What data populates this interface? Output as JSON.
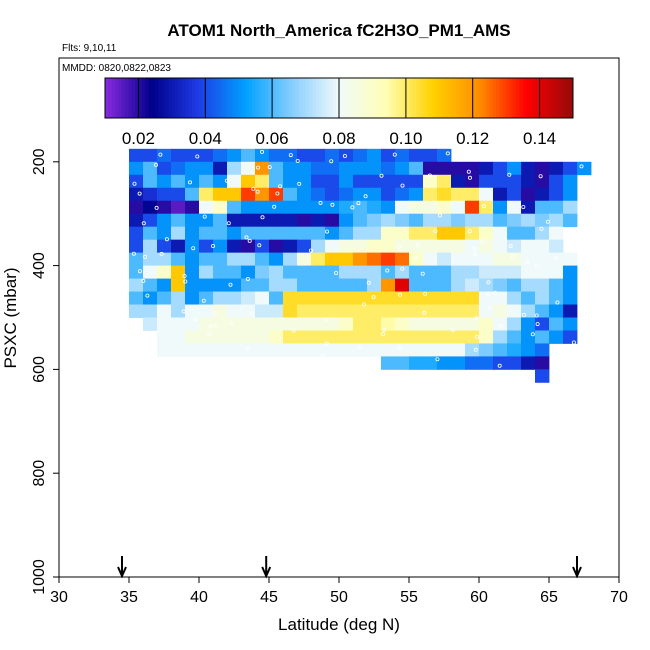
{
  "chart_data": {
    "type": "heatmap",
    "title": "ATOM1 North_America fC2H3O_PM1_AMS",
    "flights_label": "Flts: 9,10,11",
    "dates_label": "MMDD: 0820,0822,0823",
    "xlabel": "Latitude (deg N)",
    "ylabel": "PSXC (mbar)",
    "xlim": [
      30,
      70
    ],
    "ylim": [
      1000,
      0
    ],
    "x_ticks": [
      "30",
      "35",
      "40",
      "45",
      "50",
      "55",
      "60",
      "65",
      "70"
    ],
    "y_ticks": [
      "200",
      "400",
      "600",
      "800",
      "1000"
    ],
    "colorbar": {
      "range": [
        0.01,
        0.15
      ],
      "tick_labels": [
        "0.02",
        "0.04",
        "0.06",
        "0.08",
        "0.10",
        "0.12",
        "0.14"
      ],
      "colors": [
        "#8a2be2",
        "#00008b",
        "#1e3ce6",
        "#00a0ff",
        "#87ceff",
        "#f0fafa",
        "#ffffb4",
        "#ffd200",
        "#ff8c00",
        "#ff0000",
        "#960a0a"
      ]
    },
    "arrow_latitudes": [
      34.5,
      44.8,
      67.0
    ],
    "grid": {
      "lat_start": 35,
      "lat_step": 1,
      "pressure_start": 175,
      "pressure_step": 25,
      "rows": [
        [
          0.04,
          0.04,
          0.045,
          0.04,
          0.04,
          0.04,
          0.045,
          0.05,
          0.06,
          0.05,
          0.045,
          0.045,
          0.04,
          0.04,
          0.045,
          0.04,
          0.045,
          0.05,
          0.04,
          0.045,
          0.04,
          0.04,
          0.045,
          null,
          null,
          null,
          null,
          null,
          null,
          null,
          null,
          null,
          null
        ],
        [
          0.05,
          0.06,
          0.04,
          0.045,
          0.05,
          0.05,
          0.03,
          0.07,
          0.08,
          0.12,
          0.06,
          0.05,
          0.05,
          0.045,
          0.045,
          0.05,
          0.05,
          0.05,
          0.045,
          0.05,
          0.06,
          0.02,
          0.02,
          0.02,
          0.02,
          0.03,
          0.04,
          0.05,
          0.03,
          0.02,
          0.03,
          0.04,
          0.05
        ],
        [
          0.04,
          0.06,
          0.05,
          0.06,
          0.05,
          0.06,
          0.05,
          0.08,
          0.11,
          0.1,
          0.06,
          0.05,
          0.05,
          0.04,
          0.04,
          0.05,
          0.04,
          0.04,
          0.04,
          0.04,
          0.04,
          0.09,
          0.1,
          0.03,
          0.02,
          0.04,
          0.04,
          0.04,
          0.03,
          0.02,
          0.04,
          0.05,
          null
        ],
        [
          0.03,
          0.035,
          0.04,
          0.04,
          0.06,
          0.1,
          0.11,
          0.11,
          0.13,
          0.12,
          0.13,
          0.06,
          0.05,
          0.045,
          0.04,
          0.045,
          0.05,
          0.05,
          0.04,
          0.045,
          0.05,
          0.1,
          0.105,
          0.1,
          0.1,
          0.08,
          0.03,
          0.04,
          0.02,
          0.03,
          0.04,
          0.05,
          null
        ],
        [
          0.02,
          0.025,
          0.02,
          0.015,
          0.02,
          0.08,
          0.09,
          0.06,
          0.05,
          0.05,
          0.05,
          0.05,
          0.05,
          0.05,
          0.05,
          0.055,
          0.06,
          0.055,
          0.05,
          0.08,
          0.085,
          0.085,
          0.09,
          0.08,
          0.13,
          0.1,
          0.05,
          0.08,
          0.03,
          0.06,
          0.06,
          0.07,
          null
        ],
        [
          0.03,
          0.04,
          0.05,
          0.06,
          0.05,
          0.05,
          0.06,
          0.03,
          0.03,
          0.03,
          0.03,
          0.03,
          0.02,
          0.03,
          0.02,
          0.05,
          0.06,
          0.065,
          0.07,
          0.065,
          0.06,
          0.07,
          0.07,
          0.065,
          0.07,
          0.07,
          0.06,
          0.065,
          0.07,
          0.065,
          0.07,
          0.06,
          null
        ],
        [
          0.04,
          0.06,
          0.05,
          0.07,
          0.05,
          0.06,
          0.06,
          0.05,
          0.06,
          0.06,
          0.06,
          0.06,
          0.06,
          0.06,
          0.05,
          0.06,
          0.07,
          0.07,
          0.09,
          0.09,
          0.1,
          0.1,
          0.11,
          0.11,
          0.1,
          0.09,
          0.08,
          0.06,
          0.06,
          0.07,
          0.08,
          null,
          null
        ],
        [
          0.04,
          0.07,
          0.04,
          0.03,
          0.05,
          0.04,
          0.05,
          0.03,
          0.02,
          0.04,
          0.02,
          0.03,
          0.04,
          0.07,
          0.08,
          0.085,
          0.085,
          0.09,
          0.09,
          0.085,
          0.085,
          0.085,
          0.085,
          0.085,
          0.08,
          0.085,
          0.08,
          0.075,
          0.08,
          0.08,
          0.075,
          null,
          null
        ],
        [
          0.06,
          0.07,
          0.07,
          0.06,
          0.05,
          0.06,
          0.06,
          0.07,
          0.07,
          0.06,
          0.05,
          0.07,
          0.085,
          0.1,
          0.11,
          0.11,
          0.12,
          0.125,
          0.13,
          0.125,
          0.09,
          0.08,
          0.075,
          0.08,
          0.08,
          0.08,
          0.085,
          0.085,
          0.08,
          0.08,
          0.08,
          0.08,
          null
        ],
        [
          0.06,
          0.08,
          0.09,
          0.11,
          0.05,
          0.07,
          0.06,
          0.06,
          0.05,
          0.065,
          0.07,
          0.06,
          0.06,
          0.06,
          0.06,
          0.07,
          0.07,
          0.07,
          0.06,
          0.07,
          0.06,
          0.06,
          0.06,
          0.07,
          0.07,
          0.075,
          0.075,
          0.075,
          0.08,
          0.08,
          0.08,
          0.05,
          null
        ],
        [
          0.07,
          0.06,
          0.05,
          0.11,
          0.05,
          0.05,
          0.05,
          0.05,
          0.06,
          0.06,
          0.07,
          0.07,
          0.06,
          0.06,
          0.06,
          0.06,
          0.06,
          0.07,
          0.12,
          0.14,
          0.06,
          0.06,
          0.06,
          0.07,
          0.075,
          0.07,
          0.065,
          0.06,
          0.07,
          0.07,
          0.06,
          0.05,
          null
        ],
        [
          0.06,
          0.05,
          0.06,
          0.07,
          0.05,
          0.06,
          0.07,
          0.07,
          0.075,
          0.08,
          0.06,
          0.105,
          0.105,
          0.105,
          0.105,
          0.105,
          0.105,
          0.105,
          0.105,
          0.105,
          0.105,
          0.105,
          0.105,
          0.105,
          0.105,
          0.08,
          0.08,
          0.07,
          0.06,
          0.07,
          0.06,
          0.05,
          null
        ],
        [
          0.07,
          0.07,
          0.08,
          0.07,
          0.08,
          0.08,
          0.085,
          0.08,
          0.08,
          0.075,
          0.075,
          0.105,
          0.1,
          0.1,
          0.1,
          0.1,
          0.1,
          0.1,
          0.1,
          0.1,
          0.1,
          0.1,
          0.1,
          0.1,
          0.1,
          0.08,
          0.085,
          0.08,
          0.07,
          0.06,
          0.05,
          0.03,
          null
        ],
        [
          null,
          0.075,
          0.08,
          0.08,
          0.08,
          0.085,
          0.085,
          0.085,
          0.085,
          0.085,
          0.085,
          0.085,
          0.085,
          0.085,
          0.085,
          0.09,
          0.1,
          0.1,
          0.095,
          0.09,
          0.085,
          0.085,
          0.085,
          0.085,
          0.085,
          0.09,
          0.08,
          0.07,
          0.05,
          0.04,
          0.06,
          0.05,
          null
        ],
        [
          null,
          null,
          0.08,
          0.08,
          0.085,
          0.085,
          0.085,
          0.085,
          0.085,
          0.085,
          0.09,
          0.1,
          0.1,
          0.1,
          0.1,
          0.1,
          0.1,
          0.1,
          0.1,
          0.1,
          0.1,
          0.1,
          0.1,
          0.1,
          0.1,
          0.09,
          0.07,
          0.06,
          0.05,
          0.06,
          0.05,
          0.04,
          null
        ],
        [
          null,
          null,
          0.08,
          0.08,
          0.08,
          0.08,
          0.08,
          0.08,
          0.08,
          0.08,
          0.08,
          0.08,
          0.08,
          0.08,
          0.08,
          0.08,
          0.08,
          0.08,
          0.08,
          0.08,
          0.08,
          0.08,
          0.08,
          0.08,
          0.07,
          0.065,
          0.06,
          0.055,
          0.05,
          0.045,
          null,
          null,
          null
        ],
        [
          null,
          null,
          null,
          null,
          null,
          null,
          null,
          null,
          null,
          null,
          null,
          null,
          null,
          null,
          null,
          null,
          null,
          null,
          0.06,
          0.06,
          0.055,
          0.055,
          0.05,
          0.05,
          0.045,
          0.045,
          0.04,
          0.04,
          0.03,
          0.02,
          null,
          null,
          null
        ],
        [
          null,
          null,
          null,
          null,
          null,
          null,
          null,
          null,
          null,
          null,
          null,
          null,
          null,
          null,
          null,
          null,
          null,
          null,
          null,
          null,
          null,
          null,
          null,
          null,
          null,
          null,
          null,
          null,
          null,
          0.04,
          null,
          null,
          null
        ]
      ]
    }
  }
}
